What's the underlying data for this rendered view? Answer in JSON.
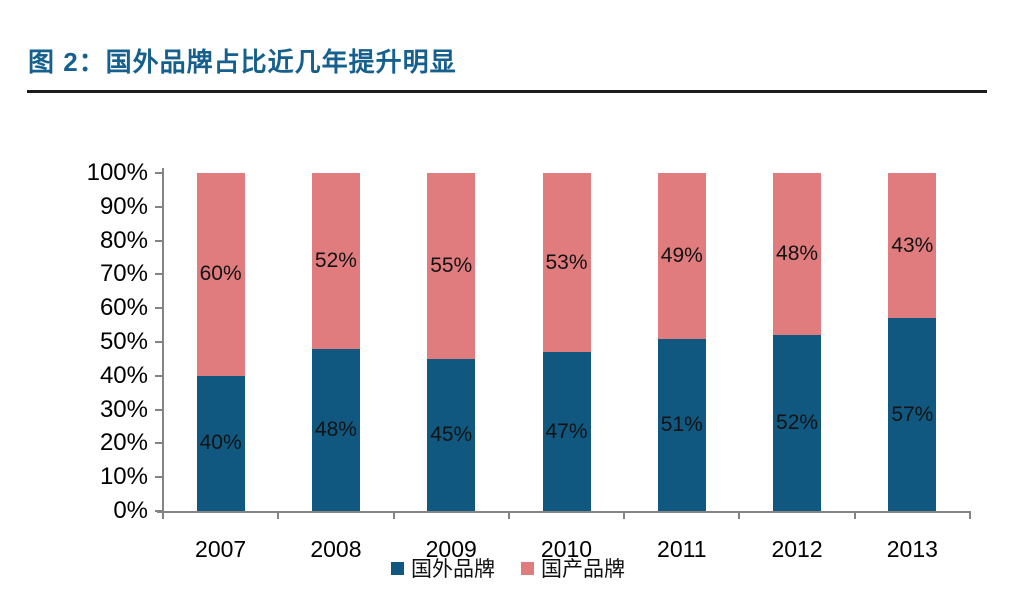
{
  "figure": {
    "title": "图 2：国外品牌占比近几年提升明显"
  },
  "chart_data": {
    "type": "bar",
    "stacked": true,
    "orientation": "vertical",
    "title": "",
    "xlabel": "",
    "ylabel": "",
    "categories": [
      "2007",
      "2008",
      "2009",
      "2010",
      "2011",
      "2012",
      "2013"
    ],
    "series": [
      {
        "name": "国外品牌",
        "color": "#10587F",
        "values": [
          40,
          48,
          45,
          47,
          51,
          52,
          57
        ]
      },
      {
        "name": "国产品牌",
        "color": "#E07B7E",
        "values": [
          60,
          52,
          55,
          53,
          49,
          48,
          43
        ]
      }
    ],
    "data_labels": [
      "40%",
      "48%",
      "45%",
      "47%",
      "51%",
      "52%",
      "57%",
      "60%",
      "52%",
      "55%",
      "53%",
      "49%",
      "48%",
      "43%"
    ],
    "ylim": [
      0,
      100
    ],
    "y_tick_labels": [
      "0%",
      "10%",
      "20%",
      "30%",
      "40%",
      "50%",
      "60%",
      "70%",
      "80%",
      "90%",
      "100%"
    ],
    "grid": false,
    "legend_position": "bottom",
    "axis_color": "#848484",
    "label_color": "#131313"
  }
}
